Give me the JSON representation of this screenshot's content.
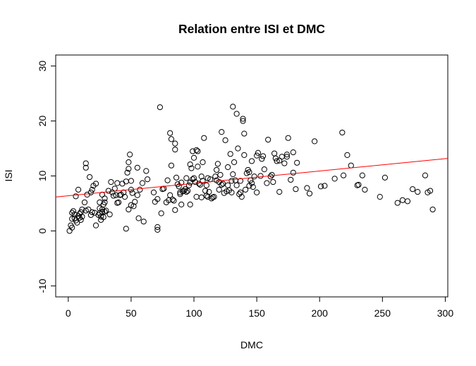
{
  "chart_data": {
    "type": "scatter",
    "title": "Relation entre  ISI  et  DMC",
    "xlabel": "DMC",
    "ylabel": "ISI",
    "xlim": [
      -10,
      302
    ],
    "ylim": [
      -12,
      32
    ],
    "x_ticks": [
      0,
      50,
      100,
      150,
      200,
      250,
      300
    ],
    "y_ticks": [
      -10,
      0,
      10,
      20,
      30
    ],
    "x_tick_labels": [
      "0",
      "50",
      "100",
      "150",
      "200",
      "250",
      "300"
    ],
    "y_tick_labels": [
      "-10",
      "0",
      "10",
      "20",
      "30"
    ],
    "grid": false,
    "legend": "none",
    "point_color": "#000000",
    "line_color": "#ff0000",
    "regression_line": {
      "intercept": 6.4,
      "slope": 0.0225
    },
    "points": [
      [
        1,
        0.0
      ],
      [
        2,
        1.0
      ],
      [
        3,
        0.6
      ],
      [
        3,
        2.2
      ],
      [
        3,
        3.3
      ],
      [
        4,
        3.6
      ],
      [
        5,
        2.3
      ],
      [
        5,
        3.0
      ],
      [
        6,
        6.3
      ],
      [
        6,
        1.9
      ],
      [
        7,
        1.5
      ],
      [
        8,
        2.7
      ],
      [
        8,
        7.5
      ],
      [
        9,
        3.1
      ],
      [
        9,
        2.4
      ],
      [
        10,
        3.4
      ],
      [
        10,
        2.0
      ],
      [
        11,
        3.9
      ],
      [
        11,
        2.6
      ],
      [
        14,
        3.7
      ],
      [
        13,
        5.2
      ],
      [
        14,
        11.5
      ],
      [
        14,
        12.3
      ],
      [
        15,
        6.6
      ],
      [
        16,
        3.9
      ],
      [
        17,
        9.8
      ],
      [
        18,
        7.0
      ],
      [
        18,
        2.9
      ],
      [
        19,
        7.5
      ],
      [
        19,
        3.4
      ],
      [
        20,
        8.2
      ],
      [
        21,
        3.3
      ],
      [
        22,
        1.0
      ],
      [
        22,
        8.6
      ],
      [
        24,
        2.9
      ],
      [
        25,
        4.1
      ],
      [
        25,
        3.2
      ],
      [
        25,
        5.2
      ],
      [
        26,
        2.6
      ],
      [
        26,
        2.0
      ],
      [
        27,
        6.6
      ],
      [
        27,
        3.9
      ],
      [
        27,
        3.5
      ],
      [
        28,
        2.5
      ],
      [
        28,
        4.8
      ],
      [
        29,
        5.2
      ],
      [
        29,
        5.9
      ],
      [
        29,
        3.5
      ],
      [
        30,
        3.7
      ],
      [
        32,
        7.3
      ],
      [
        33,
        3.0
      ],
      [
        34,
        8.9
      ],
      [
        35,
        7.0
      ],
      [
        36,
        6.4
      ],
      [
        37,
        7.7
      ],
      [
        38,
        6.5
      ],
      [
        39,
        5.1
      ],
      [
        39,
        8.7
      ],
      [
        40,
        5.2
      ],
      [
        41,
        6.5
      ],
      [
        42,
        6.6
      ],
      [
        43,
        8.6
      ],
      [
        44,
        7.0
      ],
      [
        45,
        6.2
      ],
      [
        46,
        0.4
      ],
      [
        46,
        9.0
      ],
      [
        47,
        10.6
      ],
      [
        48,
        11.3
      ],
      [
        48,
        12.5
      ],
      [
        49,
        13.9
      ],
      [
        48,
        3.9
      ],
      [
        50,
        9.1
      ],
      [
        50,
        7.5
      ],
      [
        50,
        4.7
      ],
      [
        51,
        6.9
      ],
      [
        52,
        4.5
      ],
      [
        53,
        5.3
      ],
      [
        55,
        11.5
      ],
      [
        55,
        6.5
      ],
      [
        56,
        2.3
      ],
      [
        57,
        7.5
      ],
      [
        59,
        8.7
      ],
      [
        60,
        1.7
      ],
      [
        62,
        10.9
      ],
      [
        63,
        9.4
      ],
      [
        68,
        7.0
      ],
      [
        69,
        5.3
      ],
      [
        71,
        0.7
      ],
      [
        71,
        0.2
      ],
      [
        71,
        5.8
      ],
      [
        73,
        22.5
      ],
      [
        74,
        3.2
      ],
      [
        75,
        7.6
      ],
      [
        76,
        7.7
      ],
      [
        78,
        5.2
      ],
      [
        79,
        9.2
      ],
      [
        80,
        5.6
      ],
      [
        81,
        6.5
      ],
      [
        81,
        17.8
      ],
      [
        82,
        11.9
      ],
      [
        82,
        16.7
      ],
      [
        83,
        5.7
      ],
      [
        84,
        5.5
      ],
      [
        85,
        3.8
      ],
      [
        85,
        14.8
      ],
      [
        85,
        15.9
      ],
      [
        86,
        9.7
      ],
      [
        87,
        8.5
      ],
      [
        88,
        8.1
      ],
      [
        89,
        6.7
      ],
      [
        89,
        7.0
      ],
      [
        90,
        4.8
      ],
      [
        90,
        8.8
      ],
      [
        91,
        7.2
      ],
      [
        92,
        7.3
      ],
      [
        93,
        7.6
      ],
      [
        94,
        9.6
      ],
      [
        94,
        7.1
      ],
      [
        95,
        7.3
      ],
      [
        96,
        8.3
      ],
      [
        97,
        4.8
      ],
      [
        97,
        8.8
      ],
      [
        97,
        12.1
      ],
      [
        98,
        11.4
      ],
      [
        99,
        14.5
      ],
      [
        99,
        9.4
      ],
      [
        100,
        9.6
      ],
      [
        100,
        13.3
      ],
      [
        101,
        8.9
      ],
      [
        102,
        6.2
      ],
      [
        102,
        14.7
      ],
      [
        103,
        14.5
      ],
      [
        103,
        11.7
      ],
      [
        104,
        8.6
      ],
      [
        105,
        8.4
      ],
      [
        106,
        6.1
      ],
      [
        106,
        9.9
      ],
      [
        107,
        12.5
      ],
      [
        107,
        9.1
      ],
      [
        108,
        16.9
      ],
      [
        109,
        7.3
      ],
      [
        110,
        6.4
      ],
      [
        110,
        8.3
      ],
      [
        111,
        6.2
      ],
      [
        111,
        9.6
      ],
      [
        112,
        7.1
      ],
      [
        113,
        9.4
      ],
      [
        114,
        5.9
      ],
      [
        115,
        6.1
      ],
      [
        116,
        6.2
      ],
      [
        117,
        9.9
      ],
      [
        118,
        9.2
      ],
      [
        118,
        11.1
      ],
      [
        119,
        12.2
      ],
      [
        120,
        7.5
      ],
      [
        120,
        8.9
      ],
      [
        121,
        10.2
      ],
      [
        122,
        18.0
      ],
      [
        122,
        8.4
      ],
      [
        123,
        8.6
      ],
      [
        124,
        6.9
      ],
      [
        125,
        16.5
      ],
      [
        126,
        7.2
      ],
      [
        127,
        8.3
      ],
      [
        127,
        11.6
      ],
      [
        128,
        7.4
      ],
      [
        129,
        14.0
      ],
      [
        130,
        7.0
      ],
      [
        130,
        9.1
      ],
      [
        131,
        10.3
      ],
      [
        131,
        22.6
      ],
      [
        132,
        12.5
      ],
      [
        133,
        9.2
      ],
      [
        134,
        21.3
      ],
      [
        134,
        8.3
      ],
      [
        135,
        15.0
      ],
      [
        136,
        6.7
      ],
      [
        137,
        9.1
      ],
      [
        137,
        7.0
      ],
      [
        138,
        6.2
      ],
      [
        139,
        20.0
      ],
      [
        139,
        20.4
      ],
      [
        140,
        17.7
      ],
      [
        140,
        13.8
      ],
      [
        141,
        7.5
      ],
      [
        142,
        10.5
      ],
      [
        143,
        11.1
      ],
      [
        144,
        8.2
      ],
      [
        144,
        10.7
      ],
      [
        145,
        9.2
      ],
      [
        146,
        8.7
      ],
      [
        146,
        12.7
      ],
      [
        147,
        8.0
      ],
      [
        148,
        9.9
      ],
      [
        150,
        13.7
      ],
      [
        150,
        7.0
      ],
      [
        151,
        14.2
      ],
      [
        153,
        10.0
      ],
      [
        154,
        13.1
      ],
      [
        155,
        13.6
      ],
      [
        156,
        11.2
      ],
      [
        158,
        8.7
      ],
      [
        159,
        16.6
      ],
      [
        161,
        9.9
      ],
      [
        162,
        10.2
      ],
      [
        163,
        8.9
      ],
      [
        164,
        14.1
      ],
      [
        165,
        13.2
      ],
      [
        166,
        12.7
      ],
      [
        168,
        7.1
      ],
      [
        168,
        12.8
      ],
      [
        170,
        13.5
      ],
      [
        172,
        12.3
      ],
      [
        174,
        13.5
      ],
      [
        174,
        13.9
      ],
      [
        175,
        16.9
      ],
      [
        177,
        9.3
      ],
      [
        179,
        10.6
      ],
      [
        179,
        14.3
      ],
      [
        181,
        7.6
      ],
      [
        182,
        12.4
      ],
      [
        190,
        7.8
      ],
      [
        192,
        6.8
      ],
      [
        196,
        16.3
      ],
      [
        201,
        8.1
      ],
      [
        204,
        8.2
      ],
      [
        212,
        9.5
      ],
      [
        218,
        17.9
      ],
      [
        219,
        10.1
      ],
      [
        222,
        13.8
      ],
      [
        225,
        11.9
      ],
      [
        230,
        8.3
      ],
      [
        231,
        8.4
      ],
      [
        234,
        10.1
      ],
      [
        236,
        7.5
      ],
      [
        248,
        6.2
      ],
      [
        252,
        9.7
      ],
      [
        262,
        5.1
      ],
      [
        266,
        5.6
      ],
      [
        270,
        5.4
      ],
      [
        274,
        7.6
      ],
      [
        278,
        7.1
      ],
      [
        284,
        10.1
      ],
      [
        286,
        7.0
      ],
      [
        288,
        7.3
      ],
      [
        290,
        3.9
      ]
    ]
  }
}
